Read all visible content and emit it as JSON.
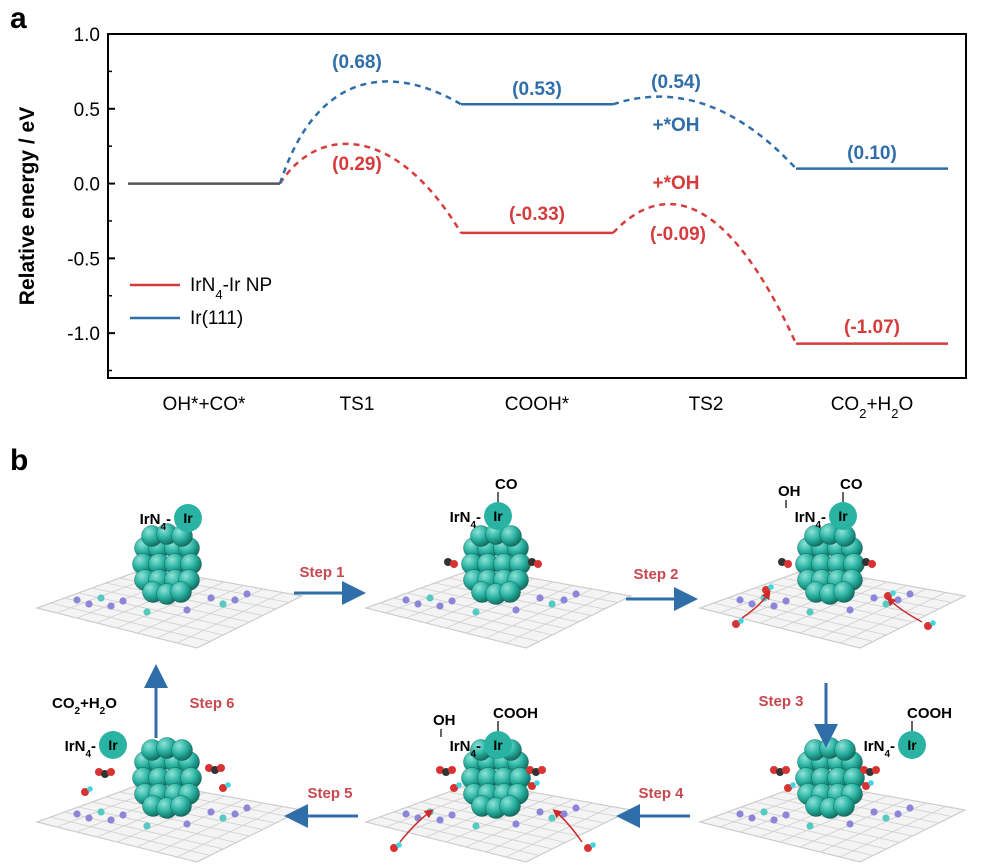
{
  "panels": {
    "a": "a",
    "b": "b"
  },
  "chart_data": {
    "type": "line",
    "ylabel": "Relative energy / eV",
    "ylim": [
      -1.3,
      1.0
    ],
    "yticks": [
      "1.0",
      "0.5",
      "0.0",
      "-0.5",
      "-1.0"
    ],
    "ytick_values": [
      1.0,
      0.5,
      0.0,
      -0.5,
      -1.0
    ],
    "categories": [
      "OH*+CO*",
      "TS1",
      "COOH*",
      "TS2",
      "CO2+H2O"
    ],
    "category_labels": [
      {
        "main": "OH*+CO*"
      },
      {
        "main": "TS1"
      },
      {
        "main": "COOH*"
      },
      {
        "main": "TS2"
      },
      {
        "parts": [
          "CO",
          "2",
          "+H",
          "2",
          "O"
        ]
      }
    ],
    "grid": false,
    "legend_position": "bottom-left",
    "series": [
      {
        "name": "IrN4-Ir NP",
        "legend_parts": [
          "IrN",
          "4",
          "-Ir NP"
        ],
        "color": "#d63c3c",
        "values": [
          0.0,
          0.29,
          -0.33,
          -0.09,
          -1.07
        ],
        "labels": [
          "",
          "(0.29)",
          "(-0.33)",
          "(-0.09)",
          "(-1.07)"
        ],
        "annotation": "+*OH"
      },
      {
        "name": "Ir(111)",
        "legend_parts": [
          "Ir(111)"
        ],
        "color": "#2f6ea8",
        "values": [
          0.0,
          0.68,
          0.53,
          0.54,
          0.1
        ],
        "labels": [
          "",
          "(0.68)",
          "(0.53)",
          "(0.54)",
          "(0.10)"
        ],
        "annotation": "+*OH"
      }
    ],
    "start_color": "#555555"
  },
  "scheme": {
    "ir_text": "Ir",
    "irn4": [
      "IrN",
      "4",
      "-"
    ],
    "ligands": {
      "co": "CO",
      "oh": "OH",
      "cooh": "COOH"
    },
    "co2h2o": [
      "CO",
      "2",
      "+H",
      "2",
      "O"
    ],
    "steps": [
      "Step 1",
      "Step 2",
      "Step 3",
      "Step 4",
      "Step 5",
      "Step 6"
    ],
    "arrow_color": "#2f6ea8",
    "cluster_color": "#2ab3a3",
    "step_color": "#c84850"
  }
}
